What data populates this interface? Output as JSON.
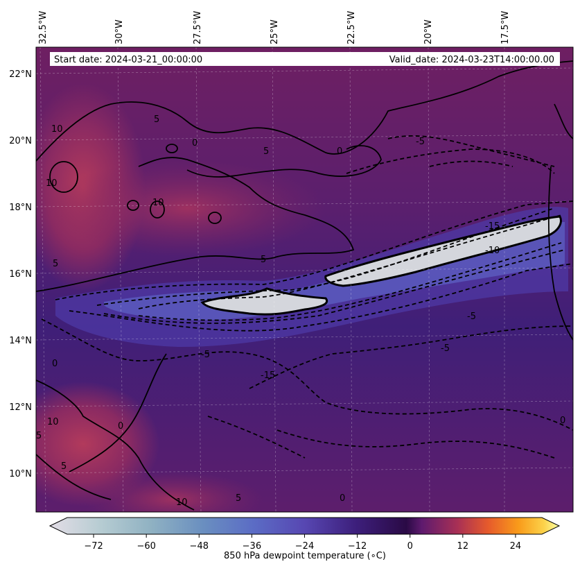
{
  "info_bar": {
    "start_date": "Start date: 2024-03-21_00:00:00",
    "valid_date": "Valid_date: 2024-03-23T14:00:00.00"
  },
  "lon_ticks": [
    "32.5°W",
    "30°W",
    "27.5°W",
    "25°W",
    "22.5°W",
    "20°W",
    "17.5°W"
  ],
  "lat_ticks": [
    "22°N",
    "20°N",
    "18°N",
    "16°N",
    "14°N",
    "12°N",
    "10°N"
  ],
  "contour_labels": [
    "10",
    "5",
    "0",
    "10",
    "10",
    "0",
    "5",
    "5",
    "5",
    "-5",
    "-10",
    "-15",
    "-5",
    "-15",
    "-5",
    "-5",
    "0",
    "10",
    "5",
    "0",
    "5",
    "5",
    "0",
    "10",
    "0"
  ],
  "colorbar": {
    "label": "850 hPa dewpoint temperature (∘C)",
    "tick_labels": [
      "−72",
      "−60",
      "−48",
      "−36",
      "−24",
      "−12",
      "0",
      "12",
      "24"
    ],
    "range": [
      -84,
      36
    ],
    "ticks": [
      -72,
      -60,
      -48,
      -36,
      -24,
      -12,
      0,
      12,
      24
    ],
    "colors": [
      "#e3dde6",
      "#b6ccd2",
      "#8fb1c2",
      "#6a8fc0",
      "#5b6cc5",
      "#5747b2",
      "#3d1f7c",
      "#2a0a45",
      "#5e1a6e",
      "#a83055",
      "#e65a2c",
      "#f99b1a",
      "#fcd24a",
      "#fcffa4"
    ]
  }
}
